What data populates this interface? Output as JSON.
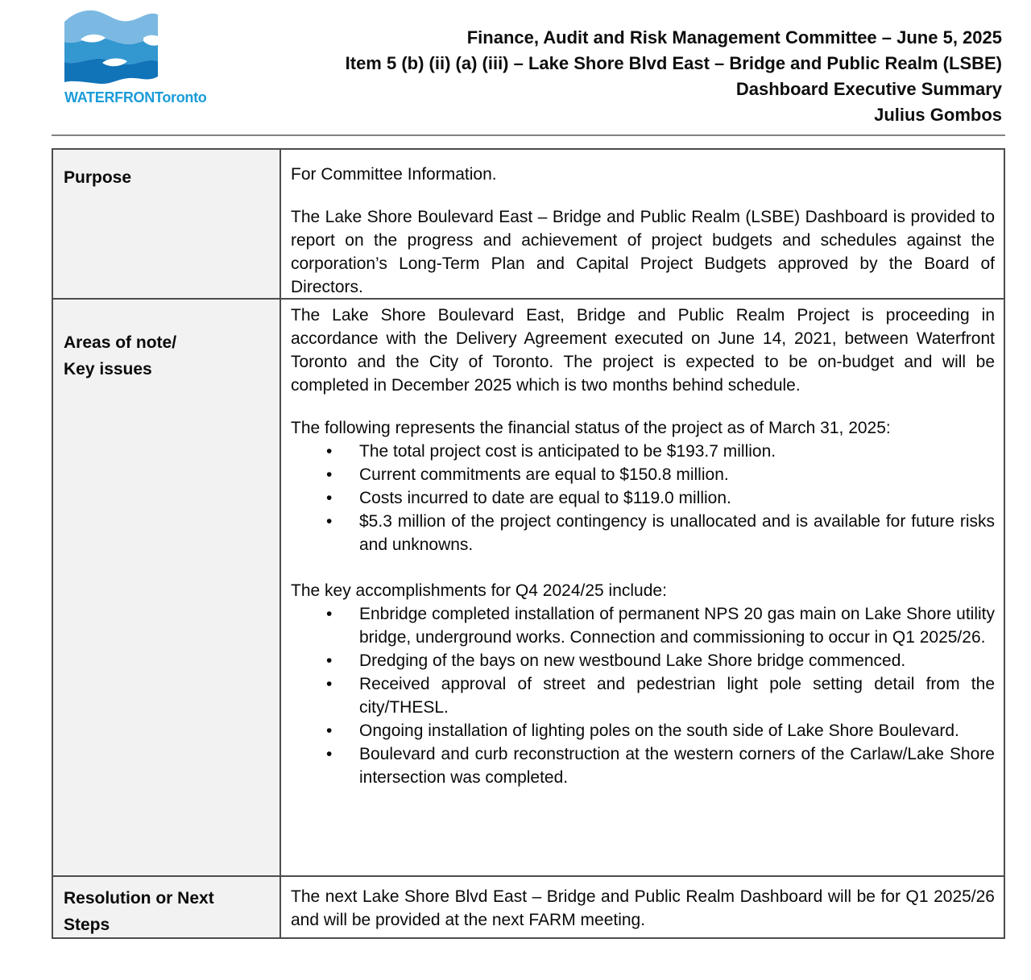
{
  "logo": {
    "wordmark": "WATERFRONToronto",
    "colors": {
      "light_blue": "#7bb9e2",
      "mid_blue": "#3397d0",
      "dark_blue": "#1173b8",
      "wordmark_blue": "#1b9cd8"
    }
  },
  "header": {
    "lines": [
      "Finance, Audit and Risk Management Committee – June 5, 2025",
      "Item 5 (b) (ii) (a) (iii) – Lake Shore Blvd East – Bridge and Public Realm (LSBE)",
      "Dashboard Executive Summary",
      "Julius Gombos"
    ]
  },
  "table": {
    "border_color": "#4c4c4c",
    "label_background": "#f2f2f2",
    "rows": [
      {
        "id": "purpose",
        "label_lines": [
          "Purpose"
        ],
        "blocks": [
          {
            "type": "p",
            "text": "For Committee Information."
          },
          {
            "type": "p",
            "text": "The Lake Shore Boulevard East – Bridge and Public Realm (LSBE) Dashboard is provided to report on the progress and achievement of project budgets and schedules against the corporation’s Long-Term Plan and Capital Project Budgets approved by the Board of Directors."
          }
        ]
      },
      {
        "id": "areas",
        "label_lines": [
          "Areas of note/",
          "Key issues"
        ],
        "blocks": [
          {
            "type": "p",
            "text": "The Lake Shore Boulevard East, Bridge and Public Realm Project is proceeding in accordance with the Delivery Agreement executed on June 14, 2021, between Waterfront Toronto and the City of Toronto. The project is expected to be on-budget and will be completed in December 2025 which is two months behind schedule."
          },
          {
            "type": "p",
            "text": "The following represents the financial status of the project as of March 31, 2025:"
          },
          {
            "type": "ul",
            "items": [
              "The total project cost is anticipated to be $193.7 million.",
              "Current commitments are equal to $150.8 million.",
              "Costs incurred to date are equal to $119.0 million.",
              "$5.3 million of the project contingency is unallocated and is available for future risks and unknowns."
            ]
          },
          {
            "type": "p",
            "text": "The key accomplishments for Q4 2024/25 include:"
          },
          {
            "type": "ul",
            "items": [
              "Enbridge completed installation of permanent NPS 20 gas main on Lake Shore utility bridge, underground works. Connection and commissioning to occur in Q1 2025/26.",
              "Dredging of the bays on new westbound Lake Shore bridge commenced.",
              "Received approval of street and pedestrian light pole setting detail from the city/THESL.",
              "Ongoing installation of lighting poles on the south side of Lake Shore Boulevard.",
              "Boulevard and curb reconstruction at the western corners of the Carlaw/Lake Shore intersection was completed."
            ]
          }
        ]
      },
      {
        "id": "resolution",
        "label_lines": [
          "Resolution or Next",
          "Steps"
        ],
        "blocks": [
          {
            "type": "p",
            "text": "The next Lake Shore Blvd East – Bridge and Public Realm Dashboard will be for Q1 2025/26 and will be provided at the next FARM meeting."
          }
        ]
      }
    ]
  }
}
